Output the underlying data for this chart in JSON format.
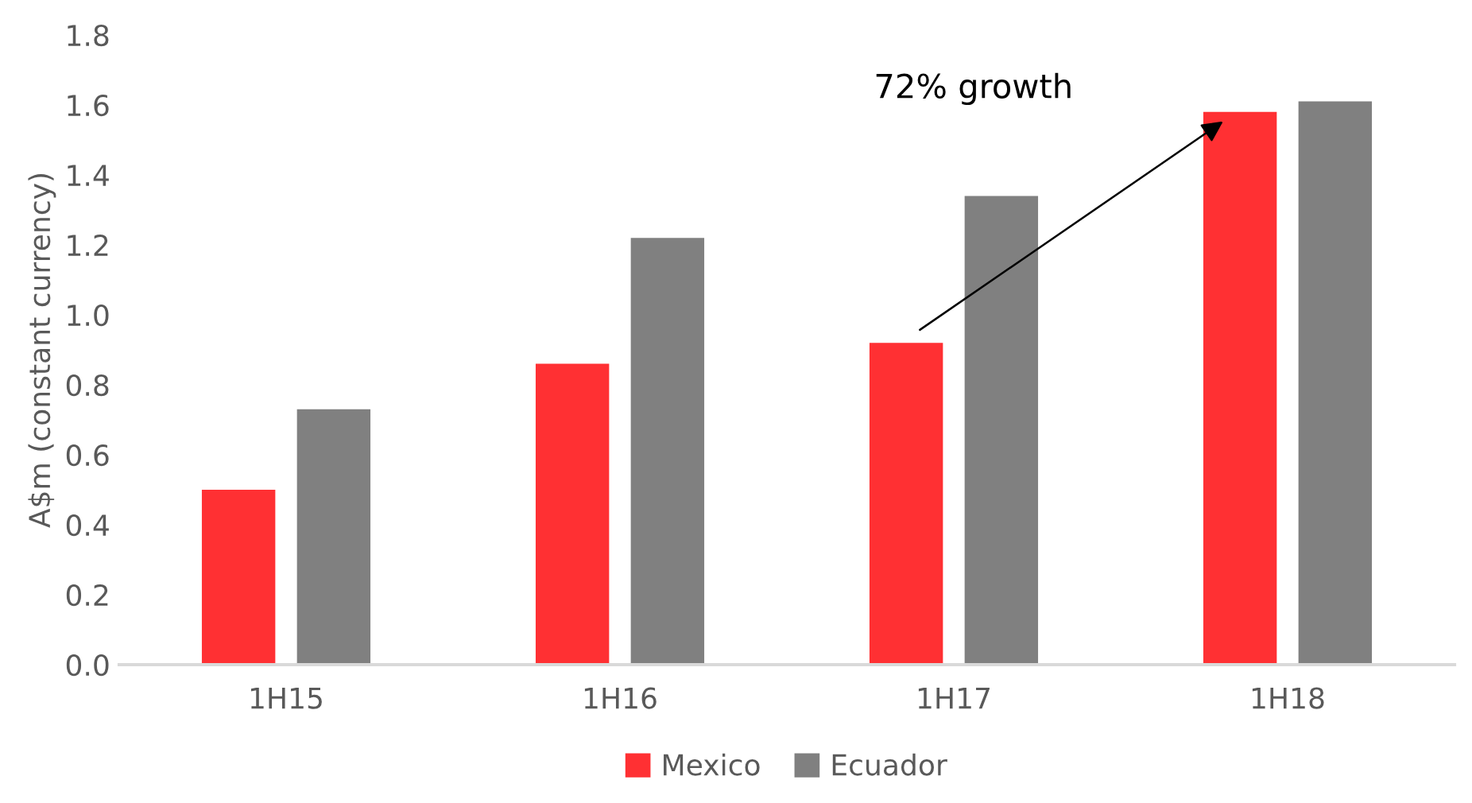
{
  "chart_data": {
    "type": "bar",
    "ylabel": "A$m (constant currency)",
    "categories": [
      "1H15",
      "1H16",
      "1H17",
      "1H18"
    ],
    "series": [
      {
        "name": "Mexico",
        "color": "#ff3033",
        "values": [
          0.5,
          0.86,
          0.92,
          1.58
        ]
      },
      {
        "name": "Ecuador",
        "color": "#808080",
        "values": [
          0.73,
          1.22,
          1.34,
          1.61
        ]
      }
    ],
    "ylim": [
      0,
      1.8
    ],
    "yticks": [
      {
        "value": 0,
        "label": "0.0"
      },
      {
        "value": 0.2,
        "label": "0.2"
      },
      {
        "value": 0.4,
        "label": "0.4"
      },
      {
        "value": 0.6,
        "label": "0.6"
      },
      {
        "value": 0.8,
        "label": "0.8"
      },
      {
        "value": 1.0,
        "label": "1.0"
      },
      {
        "value": 1.2,
        "label": "1.2"
      },
      {
        "value": 1.4,
        "label": "1.4"
      },
      {
        "value": 1.6,
        "label": "1.6"
      },
      {
        "value": 1.8,
        "label": "1.8"
      }
    ],
    "grid": false,
    "legend": "bottom",
    "annotations": [
      "72% growth"
    ]
  }
}
